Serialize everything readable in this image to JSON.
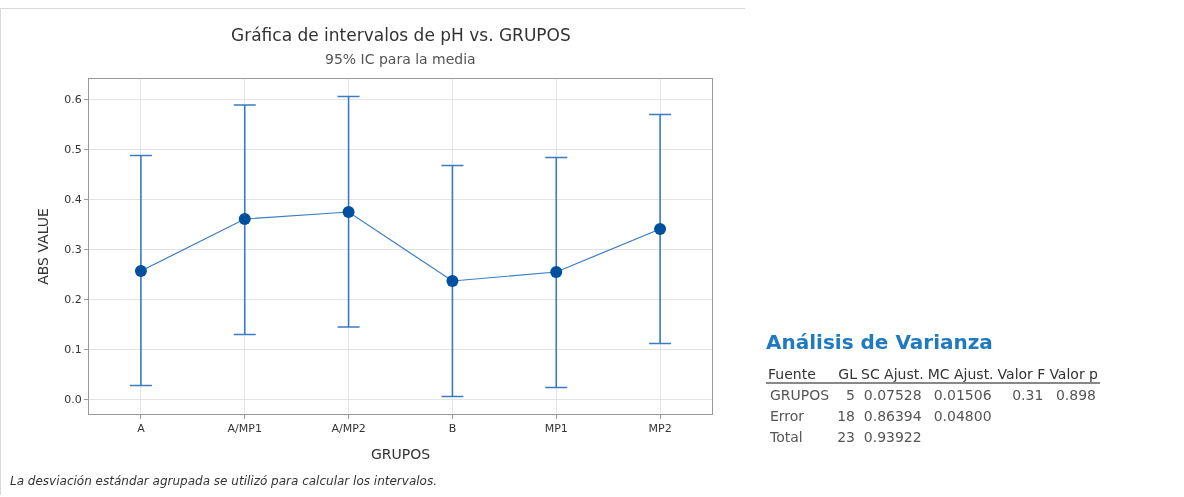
{
  "chart_data": [
    {
      "type": "line",
      "title": "Gráfica de intervalos de pH vs. GRUPOS",
      "subtitle": "95% IC para la media",
      "xlabel": "GRUPOS",
      "ylabel": "ABS VALUE",
      "categories": [
        "A",
        "A/MP1",
        "A/MP2",
        "B",
        "MP1",
        "MP2"
      ],
      "series": [
        {
          "color": "#0050a0",
          "values": [
            0.256,
            0.36,
            0.374,
            0.236,
            0.254,
            0.34
          ],
          "errors": [
            [
              0.027,
              0.487
            ],
            [
              0.129,
              0.588
            ],
            [
              0.144,
              0.605
            ],
            [
              0.005,
              0.467
            ],
            [
              0.023,
              0.483
            ],
            [
              0.111,
              0.569
            ]
          ]
        }
      ],
      "ylim": [
        -0.03,
        0.64
      ],
      "yticks": [
        {
          "value": 0,
          "label": "0.0"
        },
        0.1,
        0.2,
        0.3,
        0.4,
        0.5,
        0.6
      ],
      "grid": true,
      "marker": "circle",
      "line_style": "solid",
      "annotations": [
        "La desviación estándar agrupada se utilizó para calcular los intervalos."
      ]
    },
    {
      "type": "other",
      "title": "Análisis de Varianza",
      "categories": [
        "Fuente",
        "GL",
        "SC Ajust.",
        "MC Ajust.",
        "Valor F",
        "Valor p"
      ],
      "y_categories": [
        "GRUPOS",
        "Error",
        "Total"
      ],
      "cell_labels": [
        [
          null,
          "5",
          "0.07528",
          "0.01506",
          "0.31",
          "0.898"
        ],
        [
          null,
          "18",
          "0.86394",
          "0.04800",
          null,
          null
        ],
        [
          null,
          "23",
          "0.93922",
          null,
          null,
          null
        ]
      ]
    }
  ]
}
